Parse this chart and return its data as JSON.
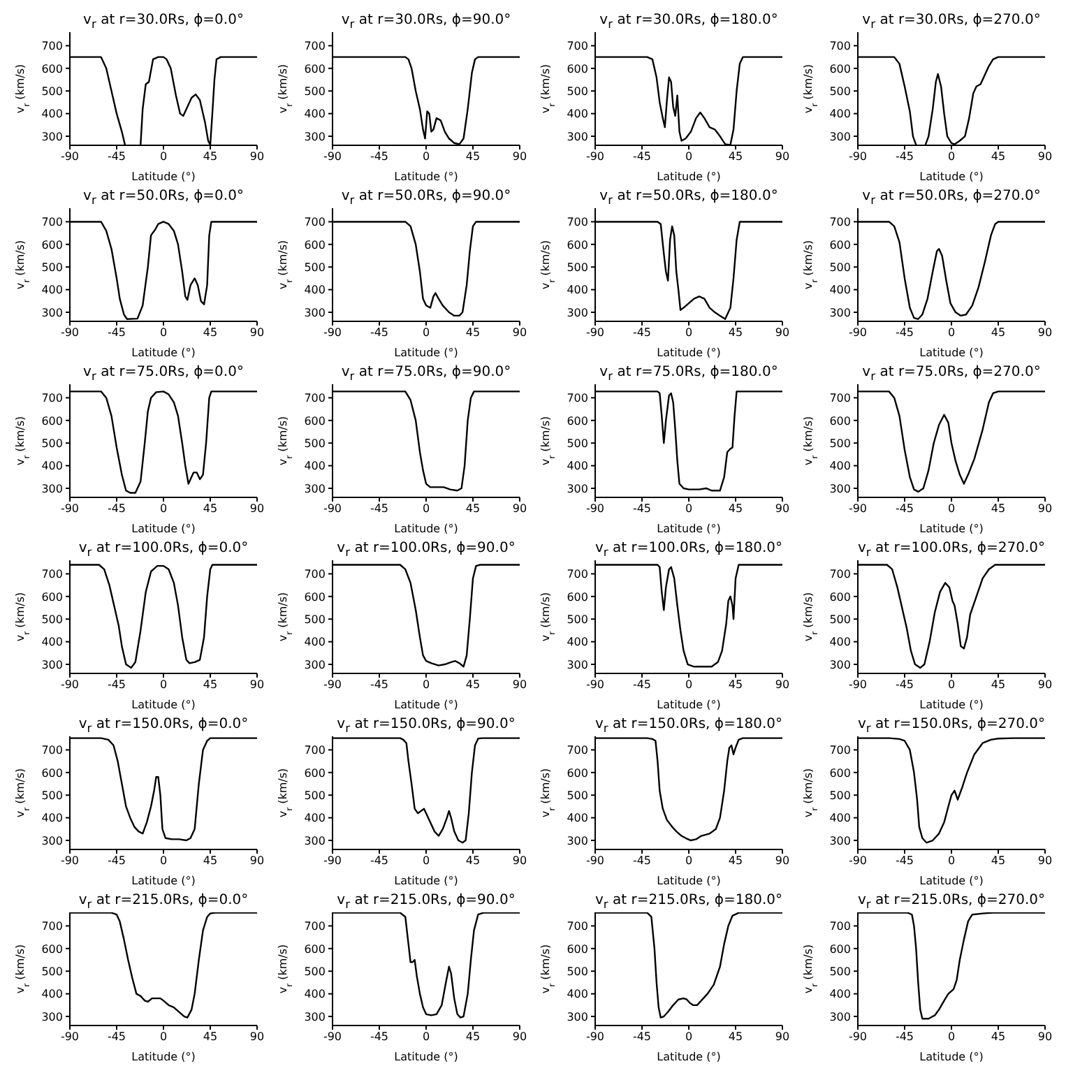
{
  "chart_data": [
    {
      "type": "line",
      "title": "v$_{r}$ at r=30.0Rs, ϕ=0.0°",
      "xlabel": "Latitude (°)",
      "ylabel": "v$_{r}$ (km/s)",
      "xlim": [
        -90,
        90
      ],
      "xticks": [
        -90,
        -45,
        0,
        45,
        90
      ],
      "ylim": [
        260,
        760
      ],
      "yticks": [
        300,
        400,
        500,
        600,
        700
      ],
      "color": "#000000",
      "x": [
        -90,
        -60,
        -55,
        -50,
        -45,
        -40,
        -37,
        -30,
        -22,
        -20,
        -17,
        -14,
        -10,
        -5,
        0,
        3,
        7,
        12,
        16,
        19,
        22,
        27,
        31,
        35,
        40,
        43,
        45,
        47,
        49,
        51,
        55,
        90
      ],
      "values": [
        650,
        650,
        600,
        500,
        400,
        320,
        262,
        null,
        262,
        420,
        530,
        540,
        640,
        650,
        650,
        640,
        600,
        480,
        400,
        390,
        420,
        470,
        485,
        460,
        360,
        280,
        262,
        400,
        550,
        640,
        650,
        650
      ]
    },
    {
      "type": "line",
      "title": "v$_{r}$ at r=30.0Rs, ϕ=90.0°",
      "xlabel": "Latitude (°)",
      "ylabel": "v$_{r}$ (km/s)",
      "xlim": [
        -90,
        90
      ],
      "xticks": [
        -90,
        -45,
        0,
        45,
        90
      ],
      "ylim": [
        260,
        760
      ],
      "yticks": [
        300,
        400,
        500,
        600,
        700
      ],
      "color": "#000000",
      "x": [
        -90,
        -20,
        -17,
        -14,
        -10,
        -6,
        -3,
        -1,
        1,
        3,
        5,
        7,
        10,
        14,
        18,
        22,
        27,
        32,
        36,
        40,
        44,
        47,
        50,
        90
      ],
      "values": [
        650,
        650,
        640,
        600,
        500,
        420,
        330,
        290,
        410,
        400,
        320,
        330,
        380,
        370,
        320,
        290,
        270,
        265,
        290,
        420,
        580,
        640,
        650,
        650
      ]
    },
    {
      "type": "line",
      "title": "v$_{r}$ at r=30.0Rs, ϕ=180.0°",
      "xlabel": "Latitude (°)",
      "ylabel": "v$_{r}$ (km/s)",
      "xlim": [
        -90,
        90
      ],
      "xticks": [
        -90,
        -45,
        0,
        45,
        90
      ],
      "ylim": [
        260,
        760
      ],
      "yticks": [
        300,
        400,
        500,
        600,
        700
      ],
      "color": "#000000",
      "x": [
        -90,
        -40,
        -35,
        -31,
        -28,
        -25,
        -23,
        -21,
        -19,
        -17,
        -15,
        -13,
        -11,
        -9,
        -7,
        -3,
        2,
        7,
        11,
        15,
        20,
        25,
        30,
        35,
        40,
        43,
        46,
        49,
        52,
        90
      ],
      "values": [
        650,
        650,
        640,
        560,
        450,
        380,
        340,
        460,
        560,
        540,
        430,
        390,
        480,
        320,
        280,
        290,
        320,
        380,
        405,
        380,
        340,
        330,
        300,
        265,
        262,
        330,
        500,
        620,
        650,
        650
      ]
    },
    {
      "type": "line",
      "title": "v$_{r}$ at r=30.0Rs, ϕ=270.0°",
      "xlabel": "Latitude (°)",
      "ylabel": "v$_{r}$ (km/s)",
      "xlim": [
        -90,
        90
      ],
      "xticks": [
        -90,
        -45,
        0,
        45,
        90
      ],
      "ylim": [
        260,
        760
      ],
      "yticks": [
        300,
        400,
        500,
        600,
        700
      ],
      "color": "#000000",
      "x": [
        -90,
        -55,
        -50,
        -45,
        -40,
        -37,
        -34,
        -30,
        -25,
        -22,
        -18,
        -15,
        -13,
        -10,
        -7,
        -4,
        0,
        3,
        8,
        13,
        17,
        21,
        24,
        28,
        31,
        36,
        40,
        45,
        90
      ],
      "values": [
        650,
        650,
        620,
        520,
        410,
        300,
        262,
        null,
        262,
        300,
        420,
        540,
        575,
        520,
        400,
        300,
        270,
        265,
        280,
        300,
        380,
        490,
        520,
        530,
        560,
        610,
        640,
        650,
        650
      ]
    },
    {
      "type": "line",
      "title": "v$_{r}$ at r=50.0Rs, ϕ=0.0°",
      "xlabel": "Latitude (°)",
      "ylabel": "v$_{r}$ (km/s)",
      "xlim": [
        -90,
        90
      ],
      "xticks": [
        -90,
        -45,
        0,
        45,
        90
      ],
      "ylim": [
        260,
        760
      ],
      "yticks": [
        300,
        400,
        500,
        600,
        700
      ],
      "color": "#000000",
      "x": [
        -90,
        -60,
        -55,
        -50,
        -45,
        -42,
        -38,
        -35,
        -25,
        -20,
        -15,
        -12,
        -8,
        -5,
        0,
        5,
        10,
        14,
        18,
        21,
        23,
        26,
        30,
        33,
        36,
        39,
        42,
        44,
        46,
        90
      ],
      "values": [
        700,
        700,
        660,
        580,
        450,
        360,
        290,
        270,
        272,
        330,
        500,
        640,
        665,
        690,
        700,
        690,
        660,
        600,
        480,
        370,
        355,
        420,
        450,
        420,
        350,
        335,
        420,
        640,
        700,
        700
      ]
    },
    {
      "type": "line",
      "title": "v$_{r}$ at r=50.0Rs, ϕ=90.0°",
      "xlabel": "Latitude (°)",
      "ylabel": "v$_{r}$ (km/s)",
      "xlim": [
        -90,
        90
      ],
      "xticks": [
        -90,
        -45,
        0,
        45,
        90
      ],
      "ylim": [
        260,
        760
      ],
      "yticks": [
        300,
        400,
        500,
        600,
        700
      ],
      "color": "#000000",
      "x": [
        -90,
        -20,
        -15,
        -10,
        -6,
        -3,
        0,
        4,
        7,
        9,
        12,
        16,
        22,
        27,
        32,
        35,
        39,
        42,
        45,
        48,
        90
      ],
      "values": [
        700,
        700,
        680,
        600,
        480,
        360,
        330,
        320,
        370,
        385,
        360,
        330,
        300,
        285,
        285,
        300,
        420,
        570,
        680,
        700,
        700
      ]
    },
    {
      "type": "line",
      "title": "v$_{r}$ at r=50.0Rs, ϕ=180.0°",
      "xlabel": "Latitude (°)",
      "ylabel": "v$_{r}$ (km/s)",
      "xlim": [
        -90,
        90
      ],
      "xticks": [
        -90,
        -45,
        0,
        45,
        90
      ],
      "ylim": [
        260,
        760
      ],
      "yticks": [
        300,
        400,
        500,
        600,
        700
      ],
      "color": "#000000",
      "x": [
        -90,
        -30,
        -27,
        -24,
        -22,
        -20,
        -18,
        -16,
        -14,
        -12,
        -10,
        -8,
        -5,
        0,
        5,
        10,
        15,
        20,
        25,
        30,
        35,
        40,
        43,
        46,
        49,
        90
      ],
      "values": [
        700,
        700,
        690,
        560,
        480,
        440,
        620,
        680,
        640,
        480,
        400,
        310,
        320,
        340,
        360,
        370,
        360,
        320,
        300,
        285,
        270,
        320,
        450,
        620,
        700,
        700
      ]
    },
    {
      "type": "line",
      "title": "v$_{r}$ at r=50.0Rs, ϕ=270.0°",
      "xlabel": "Latitude (°)",
      "ylabel": "v$_{r}$ (km/s)",
      "xlim": [
        -90,
        90
      ],
      "xticks": [
        -90,
        -45,
        0,
        45,
        90
      ],
      "ylim": [
        260,
        760
      ],
      "yticks": [
        300,
        400,
        500,
        600,
        700
      ],
      "color": "#000000",
      "x": [
        -90,
        -60,
        -55,
        -50,
        -45,
        -40,
        -36,
        -32,
        -28,
        -23,
        -18,
        -14,
        -12,
        -9,
        -5,
        -1,
        4,
        9,
        14,
        20,
        26,
        32,
        38,
        42,
        45,
        90
      ],
      "values": [
        700,
        700,
        680,
        610,
        450,
        320,
        275,
        270,
        290,
        360,
        480,
        570,
        580,
        550,
        440,
        340,
        300,
        285,
        290,
        330,
        410,
        520,
        640,
        690,
        700,
        700
      ]
    },
    {
      "type": "line",
      "title": "v$_{r}$ at r=75.0Rs, ϕ=0.0°",
      "xlabel": "Latitude (°)",
      "ylabel": "v$_{r}$ (km/s)",
      "xlim": [
        -90,
        90
      ],
      "xticks": [
        -90,
        -45,
        0,
        45,
        90
      ],
      "ylim": [
        260,
        760
      ],
      "yticks": [
        300,
        400,
        500,
        600,
        700
      ],
      "color": "#000000",
      "x": [
        -90,
        -60,
        -55,
        -50,
        -45,
        -40,
        -36,
        -32,
        -27,
        -22,
        -18,
        -15,
        -12,
        -7,
        0,
        5,
        10,
        14,
        18,
        21,
        24,
        26,
        29,
        32,
        35,
        38,
        41,
        44,
        46,
        90
      ],
      "values": [
        728,
        728,
        700,
        620,
        480,
        360,
        290,
        280,
        280,
        330,
        500,
        640,
        700,
        725,
        728,
        715,
        680,
        620,
        500,
        400,
        320,
        340,
        370,
        370,
        340,
        360,
        500,
        700,
        728,
        728
      ]
    },
    {
      "type": "line",
      "title": "v$_{r}$ at r=75.0Rs, ϕ=90.0°",
      "xlabel": "Latitude (°)",
      "ylabel": "v$_{r}$ (km/s)",
      "xlim": [
        -90,
        90
      ],
      "xticks": [
        -90,
        -45,
        0,
        45,
        90
      ],
      "ylim": [
        260,
        760
      ],
      "yticks": [
        300,
        400,
        500,
        600,
        700
      ],
      "color": "#000000",
      "x": [
        -90,
        -20,
        -15,
        -10,
        -6,
        -3,
        0,
        4,
        10,
        17,
        23,
        30,
        34,
        37,
        40,
        43,
        46,
        90
      ],
      "values": [
        728,
        728,
        690,
        600,
        460,
        380,
        320,
        305,
        305,
        305,
        295,
        290,
        300,
        400,
        600,
        700,
        728,
        728
      ]
    },
    {
      "type": "line",
      "title": "v$_{r}$ at r=75.0Rs, ϕ=180.0°",
      "xlabel": "Latitude (°)",
      "ylabel": "v$_{r}$ (km/s)",
      "xlim": [
        -90,
        90
      ],
      "xticks": [
        -90,
        -45,
        0,
        45,
        90
      ],
      "ylim": [
        260,
        760
      ],
      "yticks": [
        300,
        400,
        500,
        600,
        700
      ],
      "color": "#000000",
      "x": [
        -90,
        -30,
        -28,
        -26,
        -24,
        -22,
        -19,
        -17,
        -15,
        -13,
        -11,
        -9,
        -5,
        0,
        10,
        17,
        22,
        30,
        34,
        37,
        40,
        42,
        44,
        46,
        90
      ],
      "values": [
        728,
        728,
        720,
        620,
        500,
        600,
        710,
        720,
        680,
        560,
        420,
        320,
        300,
        295,
        295,
        300,
        290,
        290,
        350,
        460,
        475,
        480,
        620,
        728,
        728
      ]
    },
    {
      "type": "line",
      "title": "v$_{r}$ at r=75.0Rs, ϕ=270.0°",
      "xlabel": "Latitude (°)",
      "ylabel": "v$_{r}$ (km/s)",
      "xlim": [
        -90,
        90
      ],
      "xticks": [
        -90,
        -45,
        0,
        45,
        90
      ],
      "ylim": [
        260,
        760
      ],
      "yticks": [
        300,
        400,
        500,
        600,
        700
      ],
      "color": "#000000",
      "x": [
        -90,
        -60,
        -55,
        -50,
        -45,
        -40,
        -36,
        -32,
        -27,
        -22,
        -17,
        -12,
        -7,
        -3,
        0,
        4,
        8,
        12,
        16,
        22,
        30,
        36,
        40,
        45,
        90
      ],
      "values": [
        728,
        728,
        700,
        620,
        470,
        350,
        295,
        285,
        300,
        380,
        500,
        580,
        625,
        590,
        500,
        420,
        360,
        320,
        360,
        430,
        560,
        680,
        720,
        728,
        728
      ]
    },
    {
      "type": "line",
      "title": "v$_{r}$ at r=100.0Rs, ϕ=0.0°",
      "xlabel": "Latitude (°)",
      "ylabel": "v$_{r}$ (km/s)",
      "xlim": [
        -90,
        90
      ],
      "xticks": [
        -90,
        -45,
        0,
        45,
        90
      ],
      "ylim": [
        260,
        760
      ],
      "yticks": [
        300,
        400,
        500,
        600,
        700
      ],
      "color": "#000000",
      "x": [
        -90,
        -62,
        -57,
        -52,
        -47,
        -43,
        -40,
        -36,
        -31,
        -27,
        -22,
        -17,
        -12,
        -6,
        0,
        5,
        10,
        14,
        18,
        22,
        25,
        30,
        35,
        39,
        42,
        45,
        47,
        90
      ],
      "values": [
        740,
        740,
        720,
        650,
        550,
        470,
        380,
        300,
        285,
        310,
        450,
        620,
        710,
        735,
        735,
        720,
        660,
        560,
        420,
        320,
        305,
        310,
        320,
        420,
        600,
        720,
        740,
        740
      ]
    },
    {
      "type": "line",
      "title": "v$_{r}$ at r=100.0Rs, ϕ=90.0°",
      "xlabel": "Latitude (°)",
      "ylabel": "v$_{r}$ (km/s)",
      "xlim": [
        -90,
        90
      ],
      "xticks": [
        -90,
        -45,
        0,
        45,
        90
      ],
      "ylim": [
        260,
        760
      ],
      "yticks": [
        300,
        400,
        500,
        600,
        700
      ],
      "color": "#000000",
      "x": [
        -90,
        -25,
        -20,
        -15,
        -10,
        -6,
        -3,
        0,
        5,
        12,
        18,
        24,
        28,
        32,
        36,
        39,
        42,
        45,
        48,
        52,
        90
      ],
      "values": [
        740,
        740,
        720,
        660,
        540,
        420,
        340,
        315,
        305,
        295,
        300,
        310,
        315,
        305,
        290,
        340,
        500,
        680,
        735,
        740,
        740
      ]
    },
    {
      "type": "line",
      "title": "v$_{r}$ at r=100.0Rs, ϕ=180.0°",
      "xlabel": "Latitude (°)",
      "ylabel": "v$_{r}$ (km/s)",
      "xlim": [
        -90,
        90
      ],
      "xticks": [
        -90,
        -45,
        0,
        45,
        90
      ],
      "ylim": [
        260,
        760
      ],
      "yticks": [
        300,
        400,
        500,
        600,
        700
      ],
      "color": "#000000",
      "x": [
        -90,
        -30,
        -28,
        -26,
        -24,
        -22,
        -19,
        -17,
        -14,
        -11,
        -8,
        -5,
        -1,
        5,
        15,
        22,
        28,
        32,
        36,
        38,
        40,
        42,
        43,
        45,
        48,
        90
      ],
      "values": [
        740,
        740,
        730,
        620,
        540,
        640,
        720,
        730,
        680,
        560,
        450,
        360,
        300,
        290,
        290,
        290,
        310,
        360,
        480,
        580,
        600,
        560,
        500,
        680,
        740,
        740
      ]
    },
    {
      "type": "line",
      "title": "v$_{r}$ at r=100.0Rs, ϕ=270.0°",
      "xlabel": "Latitude (°)",
      "ylabel": "v$_{r}$ (km/s)",
      "xlim": [
        -90,
        90
      ],
      "xticks": [
        -90,
        -45,
        0,
        45,
        90
      ],
      "ylim": [
        260,
        760
      ],
      "yticks": [
        300,
        400,
        500,
        600,
        700
      ],
      "color": "#000000",
      "x": [
        -90,
        -62,
        -57,
        -52,
        -47,
        -43,
        -39,
        -35,
        -30,
        -26,
        -21,
        -16,
        -11,
        -6,
        -2,
        1,
        3,
        6,
        9,
        12,
        15,
        18,
        24,
        30,
        36,
        42,
        90
      ],
      "values": [
        740,
        740,
        720,
        640,
        540,
        460,
        360,
        300,
        285,
        300,
        400,
        530,
        620,
        660,
        640,
        580,
        560,
        480,
        380,
        370,
        420,
        520,
        600,
        680,
        720,
        740,
        740
      ]
    },
    {
      "type": "line",
      "title": "v$_{r}$ at r=150.0Rs, ϕ=0.0°",
      "xlabel": "Latitude (°)",
      "ylabel": "v$_{r}$ (km/s)",
      "xlim": [
        -90,
        90
      ],
      "xticks": [
        -90,
        -45,
        0,
        45,
        90
      ],
      "ylim": [
        260,
        760
      ],
      "yticks": [
        300,
        400,
        500,
        600,
        700
      ],
      "color": "#000000",
      "x": [
        -90,
        -60,
        -53,
        -48,
        -44,
        -40,
        -36,
        -32,
        -28,
        -24,
        -20,
        -16,
        -12,
        -9,
        -7,
        -5,
        -3,
        -1,
        2,
        8,
        15,
        22,
        26,
        30,
        34,
        38,
        42,
        45,
        90
      ],
      "values": [
        752,
        752,
        745,
        720,
        650,
        550,
        450,
        400,
        360,
        340,
        330,
        380,
        450,
        520,
        580,
        580,
        500,
        350,
        310,
        305,
        305,
        300,
        310,
        350,
        550,
        700,
        740,
        752,
        752
      ]
    },
    {
      "type": "line",
      "title": "v$_{r}$ at r=150.0Rs, ϕ=90.0°",
      "xlabel": "Latitude (°)",
      "ylabel": "v$_{r}$ (km/s)",
      "xlim": [
        -90,
        90
      ],
      "xticks": [
        -90,
        -45,
        0,
        45,
        90
      ],
      "ylim": [
        260,
        760
      ],
      "yticks": [
        300,
        400,
        500,
        600,
        700
      ],
      "color": "#000000",
      "x": [
        -90,
        -25,
        -22,
        -19,
        -17,
        -14,
        -11,
        -8,
        -5,
        -2,
        0,
        4,
        8,
        12,
        16,
        20,
        22,
        24,
        27,
        31,
        35,
        38,
        41,
        44,
        47,
        50,
        54,
        90
      ],
      "values": [
        752,
        752,
        745,
        730,
        650,
        550,
        440,
        420,
        430,
        440,
        420,
        380,
        340,
        320,
        350,
        400,
        430,
        400,
        340,
        300,
        290,
        300,
        420,
        600,
        720,
        750,
        752,
        752
      ]
    },
    {
      "type": "line",
      "title": "v$_{r}$ at r=150.0Rs, ϕ=180.0°",
      "xlabel": "Latitude (°)",
      "ylabel": "v$_{r}$ (km/s)",
      "xlim": [
        -90,
        90
      ],
      "xticks": [
        -90,
        -45,
        0,
        45,
        90
      ],
      "ylim": [
        260,
        760
      ],
      "yticks": [
        300,
        400,
        500,
        600,
        700
      ],
      "color": "#000000",
      "x": [
        -90,
        -40,
        -35,
        -32,
        -30,
        -28,
        -25,
        -21,
        -16,
        -12,
        -7,
        -3,
        2,
        7,
        12,
        20,
        26,
        30,
        34,
        37,
        39,
        41,
        43,
        45,
        48,
        52,
        90
      ],
      "values": [
        752,
        752,
        748,
        740,
        650,
        520,
        440,
        390,
        360,
        340,
        320,
        310,
        300,
        305,
        320,
        330,
        350,
        400,
        520,
        650,
        710,
        720,
        680,
        710,
        745,
        752,
        752
      ]
    },
    {
      "type": "line",
      "title": "v$_{r}$ at r=150.0Rs, ϕ=270.0°",
      "xlabel": "Latitude (°)",
      "ylabel": "v$_{r}$ (km/s)",
      "xlim": [
        -90,
        90
      ],
      "xticks": [
        -90,
        -45,
        0,
        45,
        90
      ],
      "ylim": [
        260,
        760
      ],
      "yticks": [
        300,
        400,
        500,
        600,
        700
      ],
      "color": "#000000",
      "x": [
        -90,
        -60,
        -50,
        -45,
        -40,
        -36,
        -33,
        -31,
        -28,
        -24,
        -18,
        -12,
        -7,
        -3,
        0,
        3,
        6,
        10,
        15,
        22,
        30,
        38,
        45,
        60,
        90
      ],
      "values": [
        752,
        752,
        748,
        740,
        700,
        600,
        480,
        360,
        310,
        290,
        300,
        330,
        380,
        450,
        500,
        520,
        480,
        530,
        600,
        680,
        730,
        745,
        750,
        752,
        752
      ]
    },
    {
      "type": "line",
      "title": "v$_{r}$ at r=215.0Rs, ϕ=0.0°",
      "xlabel": "Latitude (°)",
      "ylabel": "v$_{r}$ (km/s)",
      "xlim": [
        -90,
        90
      ],
      "xticks": [
        -90,
        -45,
        0,
        45,
        90
      ],
      "ylim": [
        260,
        760
      ],
      "yticks": [
        300,
        400,
        500,
        600,
        700
      ],
      "color": "#000000",
      "x": [
        -90,
        -50,
        -45,
        -42,
        -38,
        -34,
        -30,
        -26,
        -22,
        -18,
        -15,
        -11,
        -7,
        -3,
        0,
        5,
        10,
        15,
        20,
        23,
        27,
        30,
        34,
        38,
        42,
        45,
        50,
        90
      ],
      "values": [
        758,
        758,
        750,
        720,
        640,
        550,
        470,
        400,
        390,
        370,
        365,
        380,
        380,
        380,
        370,
        350,
        340,
        320,
        300,
        295,
        330,
        400,
        550,
        680,
        740,
        755,
        758,
        758
      ]
    },
    {
      "type": "line",
      "title": "v$_{r}$ at r=215.0Rs, ϕ=90.0°",
      "xlabel": "Latitude (°)",
      "ylabel": "v$_{r}$ (km/s)",
      "xlim": [
        -90,
        90
      ],
      "xticks": [
        -90,
        -45,
        0,
        45,
        90
      ],
      "ylim": [
        260,
        760
      ],
      "yticks": [
        300,
        400,
        500,
        600,
        700
      ],
      "color": "#000000",
      "x": [
        -90,
        -25,
        -20,
        -17,
        -15,
        -13,
        -11,
        -9,
        -6,
        -3,
        0,
        5,
        10,
        15,
        19,
        22,
        24,
        27,
        30,
        33,
        36,
        40,
        43,
        46,
        50,
        55,
        90
      ],
      "values": [
        758,
        758,
        740,
        620,
        540,
        540,
        550,
        480,
        400,
        340,
        310,
        305,
        310,
        350,
        450,
        520,
        490,
        380,
        310,
        295,
        300,
        400,
        550,
        680,
        750,
        758,
        758
      ]
    },
    {
      "type": "line",
      "title": "v$_{r}$ at r=215.0Rs, ϕ=180.0°",
      "xlabel": "Latitude (°)",
      "ylabel": "v$_{r}$ (km/s)",
      "xlim": [
        -90,
        90
      ],
      "xticks": [
        -90,
        -45,
        0,
        45,
        90
      ],
      "ylim": [
        260,
        760
      ],
      "yticks": [
        300,
        400,
        500,
        600,
        700
      ],
      "color": "#000000",
      "x": [
        -90,
        -40,
        -36,
        -33,
        -31,
        -29,
        -27,
        -24,
        -20,
        -15,
        -10,
        -5,
        -2,
        1,
        4,
        8,
        12,
        18,
        24,
        30,
        34,
        38,
        42,
        48,
        90
      ],
      "values": [
        758,
        758,
        740,
        600,
        450,
        340,
        295,
        300,
        320,
        350,
        375,
        380,
        375,
        360,
        350,
        350,
        370,
        400,
        440,
        520,
        620,
        700,
        745,
        758,
        758
      ]
    },
    {
      "type": "line",
      "title": "v$_{r}$ at r=215.0Rs, ϕ=270.0°",
      "xlabel": "Latitude (°)",
      "ylabel": "v$_{r}$ (km/s)",
      "xlim": [
        -90,
        90
      ],
      "xticks": [
        -90,
        -45,
        0,
        45,
        90
      ],
      "ylim": [
        260,
        760
      ],
      "yticks": [
        300,
        400,
        500,
        600,
        700
      ],
      "color": "#000000",
      "x": [
        -90,
        -42,
        -38,
        -36,
        -34,
        -32,
        -30,
        -28,
        -22,
        -16,
        -12,
        -7,
        -3,
        2,
        5,
        8,
        12,
        16,
        20,
        30,
        40,
        90
      ],
      "values": [
        758,
        758,
        750,
        700,
        600,
        450,
        330,
        290,
        290,
        305,
        330,
        370,
        400,
        420,
        460,
        550,
        640,
        720,
        750,
        755,
        758,
        758
      ]
    }
  ]
}
